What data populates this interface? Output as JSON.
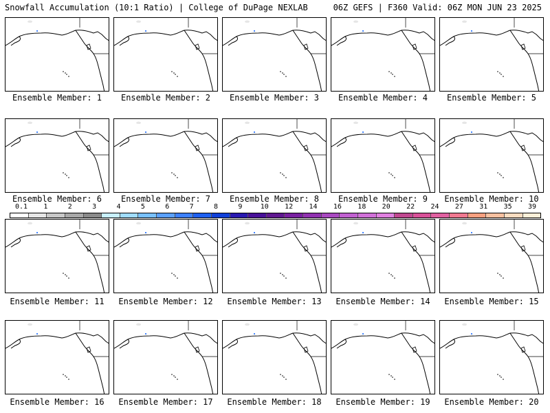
{
  "header": {
    "title_left": "Snowfall Accumulation (10:1 Ratio) | College of DuPage NEXLAB",
    "title_right": "06Z GEFS | F360 Valid: 06Z MON JUN 23 2025"
  },
  "panels": [
    {
      "label": "Ensemble Member: 1"
    },
    {
      "label": "Ensemble Member: 2"
    },
    {
      "label": "Ensemble Member: 3"
    },
    {
      "label": "Ensemble Member: 4"
    },
    {
      "label": "Ensemble Member: 5"
    },
    {
      "label": "Ensemble Member: 6"
    },
    {
      "label": "Ensemble Member: 7"
    },
    {
      "label": "Ensemble Member: 8"
    },
    {
      "label": "Ensemble Member: 9"
    },
    {
      "label": "Ensemble Member: 10"
    },
    {
      "label": "Ensemble Member: 11"
    },
    {
      "label": "Ensemble Member: 12"
    },
    {
      "label": "Ensemble Member: 13"
    },
    {
      "label": "Ensemble Member: 14"
    },
    {
      "label": "Ensemble Member: 15"
    },
    {
      "label": "Ensemble Member: 16"
    },
    {
      "label": "Ensemble Member: 17"
    },
    {
      "label": "Ensemble Member: 18"
    },
    {
      "label": "Ensemble Member: 19"
    },
    {
      "label": "Ensemble Member: 20"
    }
  ],
  "scale": {
    "labels": [
      "0.1",
      "1",
      "2",
      "3",
      "4",
      "5",
      "6",
      "7",
      "8",
      "9",
      "10",
      "12",
      "14",
      "16",
      "18",
      "20",
      "22",
      "24",
      "27",
      "31",
      "35",
      "39"
    ],
    "colors": [
      "#ffffff",
      "#e6e6e6",
      "#c8c8c8",
      "#a8a8a8",
      "#8a8a8a",
      "#c8f0ff",
      "#a0dcff",
      "#78c0ff",
      "#5aa0ff",
      "#3c80ff",
      "#1e60f0",
      "#1040d8",
      "#2818b0",
      "#481098",
      "#601890",
      "#7820a0",
      "#9030b0",
      "#a848c0",
      "#c060d0",
      "#d070d8",
      "#e080e0",
      "#c04890",
      "#d85098",
      "#e060a0",
      "#f07890",
      "#f8a080",
      "#f8c0a0",
      "#fadcc0",
      "#fcefd8"
    ]
  }
}
